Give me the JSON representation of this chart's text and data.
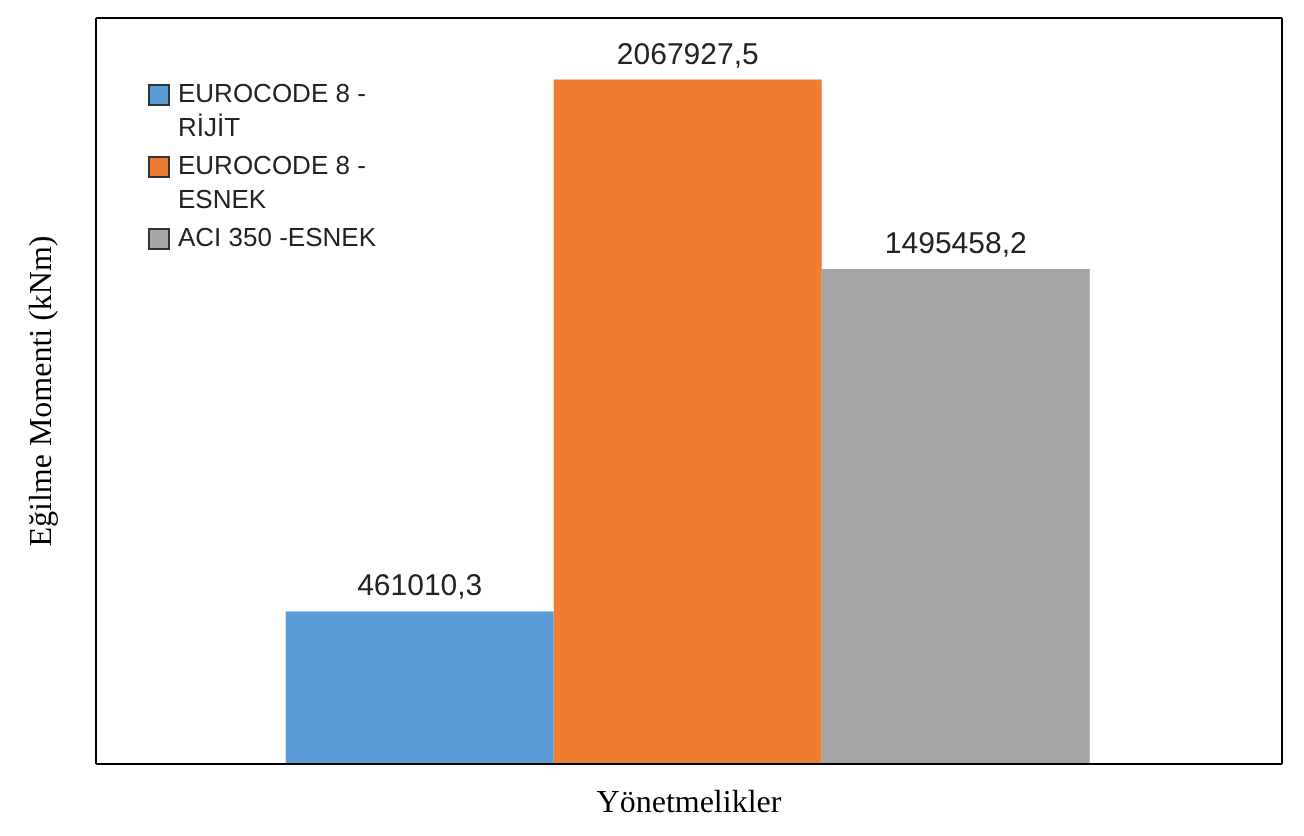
{
  "chart_data": {
    "type": "bar",
    "xlabel": "Yönetmelikler",
    "ylabel": "Eğilme Momenti (kNm)",
    "categories": [
      null
    ],
    "legend": "top left",
    "series": [
      {
        "name": "EUROCODE 8 - RİJİT",
        "color": "#5b9bd5",
        "values": [
          461010.3
        ],
        "value_labels": [
          "461010,3"
        ]
      },
      {
        "name": "EUROCODE 8 - ESNEK",
        "color": "#ed7d31",
        "values": [
          2067927.5
        ],
        "value_labels": [
          "2067927,5"
        ]
      },
      {
        "name": "ACI 350 -ESNEK",
        "color": "#a5a5a5",
        "values": [
          1495458.2
        ],
        "value_labels": [
          "1495458,2"
        ]
      }
    ]
  }
}
